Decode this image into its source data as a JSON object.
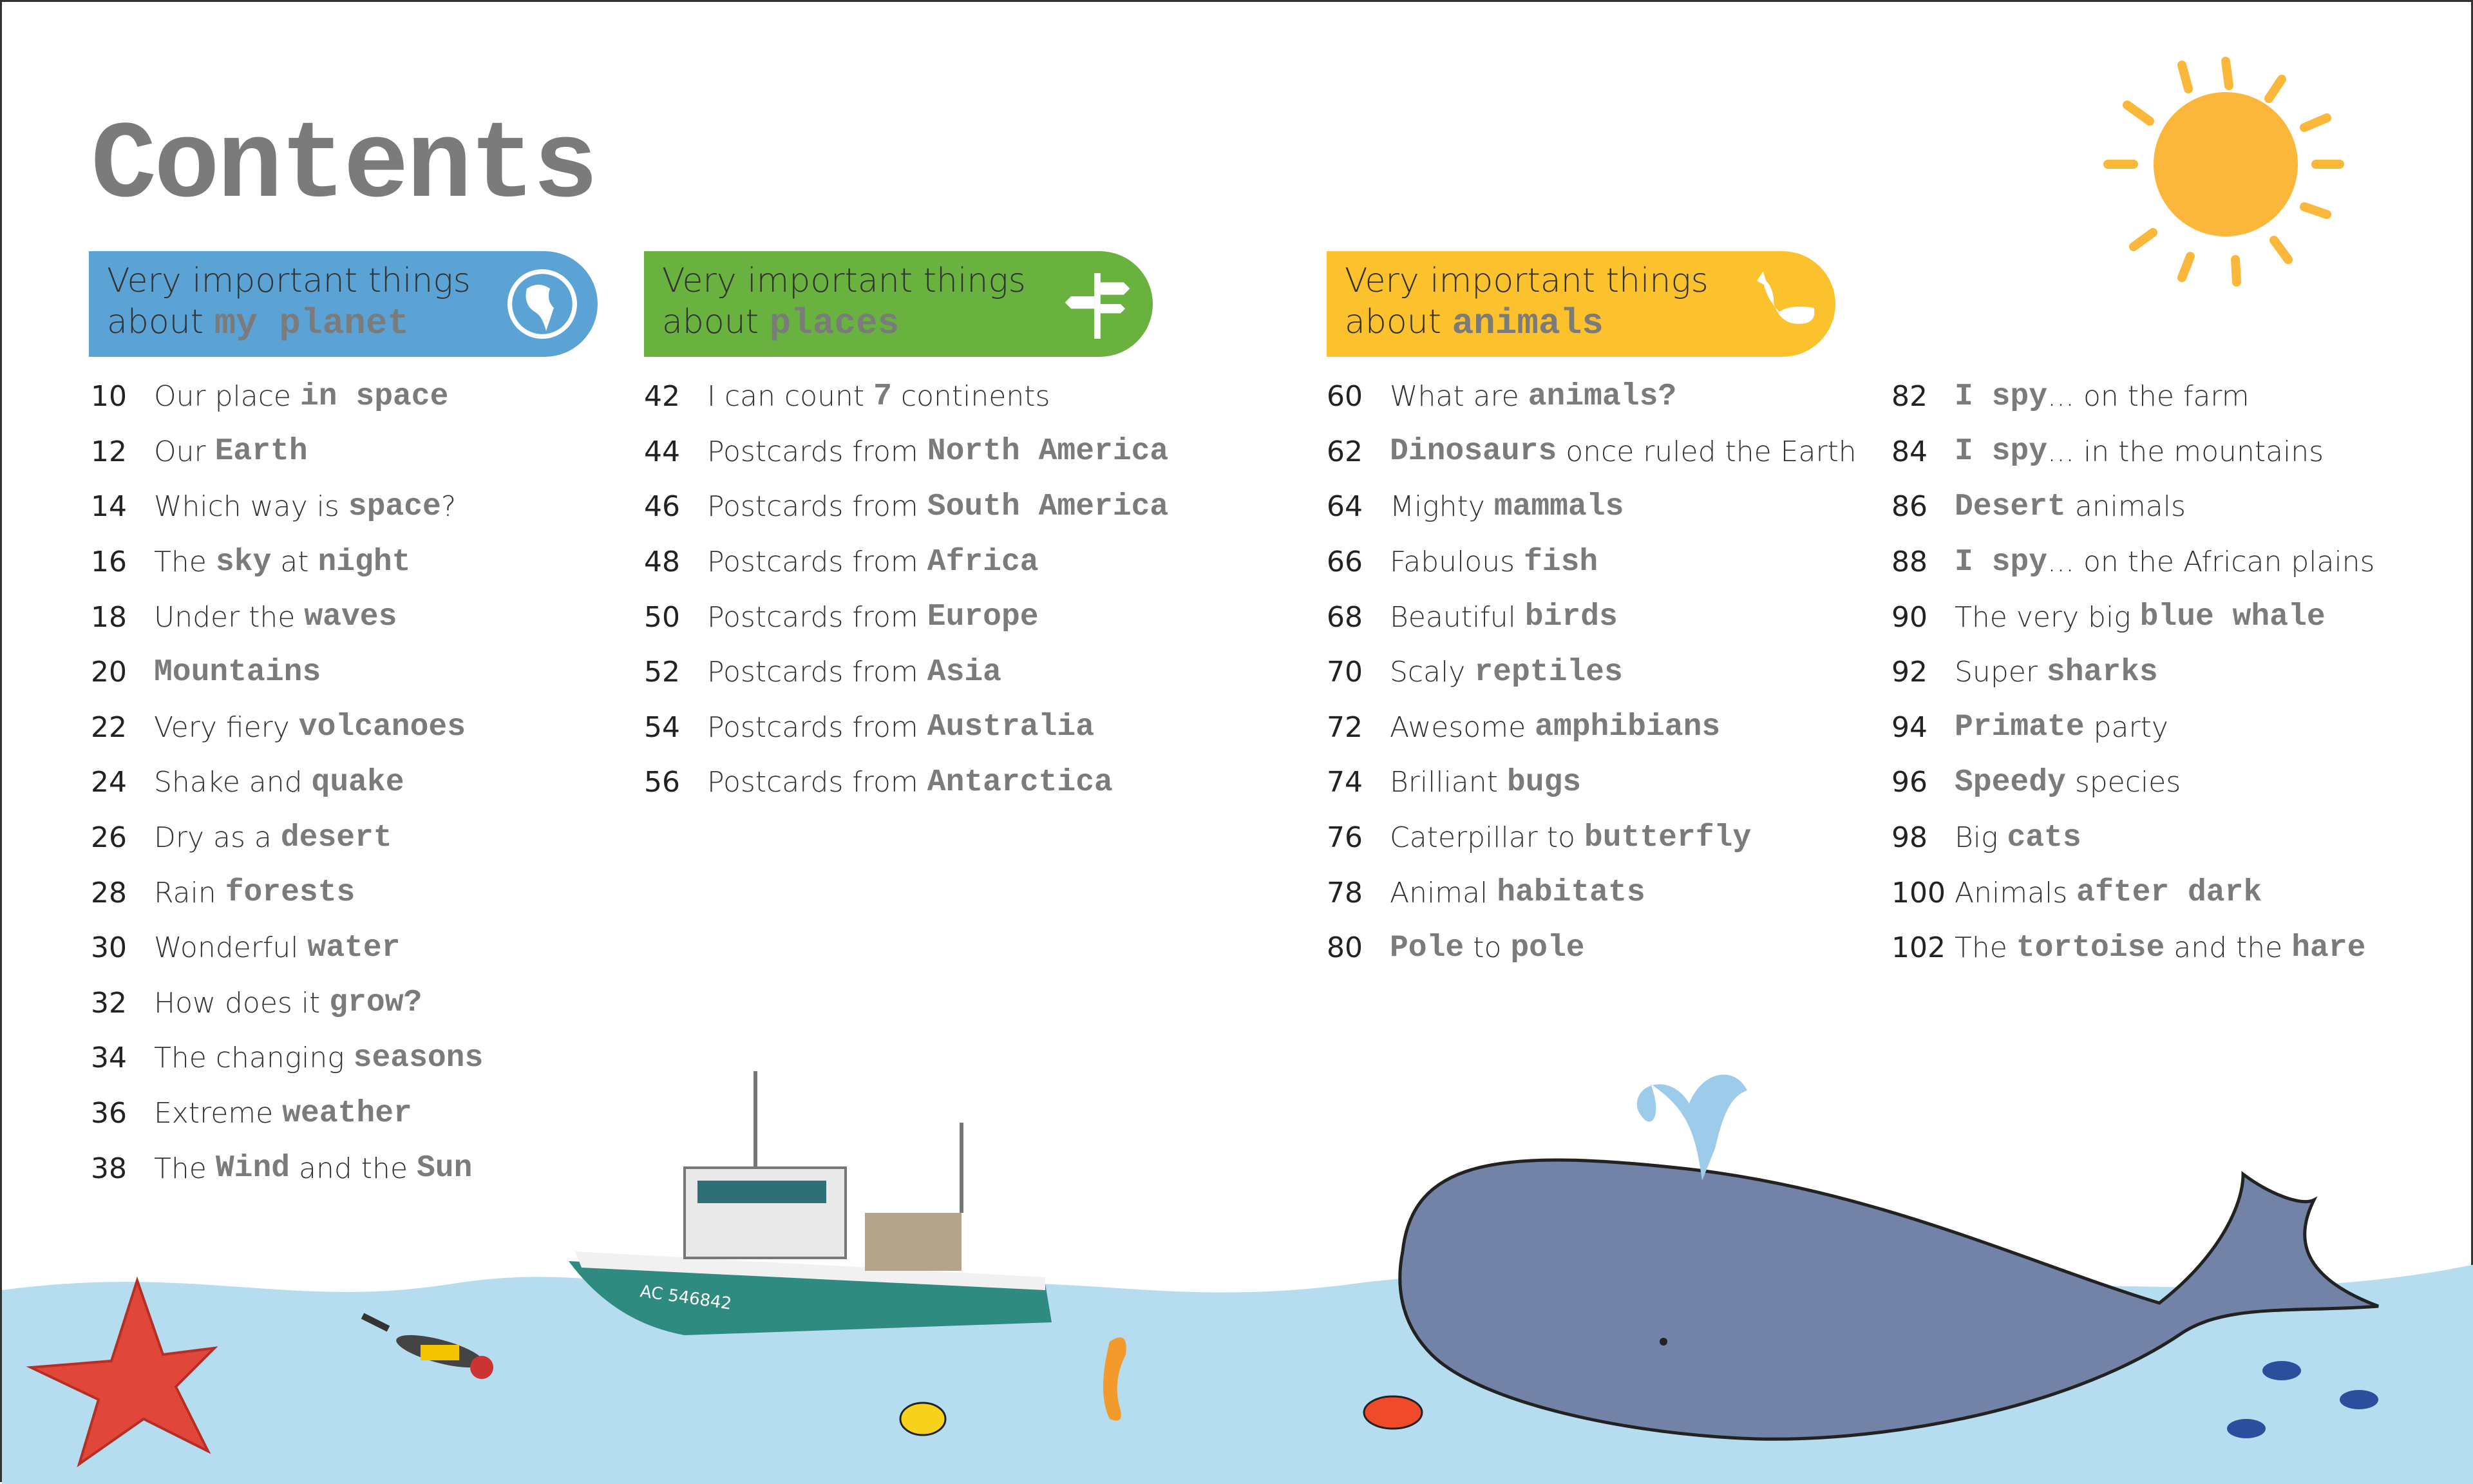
{
  "title": "Contents",
  "colors": {
    "planet": "#5ba3d4",
    "places": "#6ab23f",
    "animals": "#fcc22d",
    "highlight": "#7b7b7b",
    "water": "#b5ddef",
    "sun": "#fbb73a"
  },
  "sections": [
    {
      "line1": "Very important things",
      "about": "about",
      "highlight": "my planet",
      "icon": "globe-icon",
      "items": [
        {
          "num": "10",
          "parts": [
            {
              "t": "Our place ",
              "b": false
            },
            {
              "t": "in space",
              "b": true
            }
          ]
        },
        {
          "num": "12",
          "parts": [
            {
              "t": "Our ",
              "b": false
            },
            {
              "t": "Earth",
              "b": true
            }
          ]
        },
        {
          "num": "14",
          "parts": [
            {
              "t": "Which way is ",
              "b": false
            },
            {
              "t": "space",
              "b": true
            },
            {
              "t": "?",
              "b": false
            }
          ]
        },
        {
          "num": "16",
          "parts": [
            {
              "t": "The ",
              "b": false
            },
            {
              "t": "sky",
              "b": true
            },
            {
              "t": " at ",
              "b": false
            },
            {
              "t": "night",
              "b": true
            }
          ]
        },
        {
          "num": "18",
          "parts": [
            {
              "t": "Under the ",
              "b": false
            },
            {
              "t": "waves",
              "b": true
            }
          ]
        },
        {
          "num": "20",
          "parts": [
            {
              "t": "Mountains",
              "b": true
            }
          ]
        },
        {
          "num": "22",
          "parts": [
            {
              "t": "Very fiery ",
              "b": false
            },
            {
              "t": "volcanoes",
              "b": true
            }
          ]
        },
        {
          "num": "24",
          "parts": [
            {
              "t": "Shake and ",
              "b": false
            },
            {
              "t": "quake",
              "b": true
            }
          ]
        },
        {
          "num": "26",
          "parts": [
            {
              "t": "Dry as a ",
              "b": false
            },
            {
              "t": "desert",
              "b": true
            }
          ]
        },
        {
          "num": "28",
          "parts": [
            {
              "t": "Rain ",
              "b": false
            },
            {
              "t": "forests",
              "b": true
            }
          ]
        },
        {
          "num": "30",
          "parts": [
            {
              "t": "Wonderful ",
              "b": false
            },
            {
              "t": "water",
              "b": true
            }
          ]
        },
        {
          "num": "32",
          "parts": [
            {
              "t": "How does it ",
              "b": false
            },
            {
              "t": "grow?",
              "b": true
            }
          ]
        },
        {
          "num": "34",
          "parts": [
            {
              "t": "The changing ",
              "b": false
            },
            {
              "t": "seasons",
              "b": true
            }
          ]
        },
        {
          "num": "36",
          "parts": [
            {
              "t": "Extreme ",
              "b": false
            },
            {
              "t": "weather",
              "b": true
            }
          ]
        },
        {
          "num": "38",
          "parts": [
            {
              "t": "The ",
              "b": false
            },
            {
              "t": "Wind",
              "b": true
            },
            {
              "t": " and the ",
              "b": false
            },
            {
              "t": "Sun",
              "b": true
            }
          ]
        }
      ]
    },
    {
      "line1": "Very important things",
      "about": "about",
      "highlight": "places",
      "icon": "signpost-icon",
      "items": [
        {
          "num": "42",
          "parts": [
            {
              "t": "I can count ",
              "b": false
            },
            {
              "t": "7",
              "b": true
            },
            {
              "t": " continents",
              "b": false
            }
          ]
        },
        {
          "num": "44",
          "parts": [
            {
              "t": "Postcards from ",
              "b": false
            },
            {
              "t": "North America",
              "b": true
            }
          ]
        },
        {
          "num": "46",
          "parts": [
            {
              "t": "Postcards from ",
              "b": false
            },
            {
              "t": "South America",
              "b": true
            }
          ]
        },
        {
          "num": "48",
          "parts": [
            {
              "t": "Postcards from ",
              "b": false
            },
            {
              "t": "Africa",
              "b": true
            }
          ]
        },
        {
          "num": "50",
          "parts": [
            {
              "t": "Postcards from ",
              "b": false
            },
            {
              "t": "Europe",
              "b": true
            }
          ]
        },
        {
          "num": "52",
          "parts": [
            {
              "t": "Postcards from ",
              "b": false
            },
            {
              "t": "Asia",
              "b": true
            }
          ]
        },
        {
          "num": "54",
          "parts": [
            {
              "t": "Postcards from ",
              "b": false
            },
            {
              "t": "Australia",
              "b": true
            }
          ]
        },
        {
          "num": "56",
          "parts": [
            {
              "t": "Postcards from ",
              "b": false
            },
            {
              "t": "Antarctica",
              "b": true
            }
          ]
        }
      ]
    },
    {
      "line1": "Very important things",
      "about": "about",
      "highlight": "animals",
      "icon": "whale-icon",
      "items": [
        {
          "num": "60",
          "parts": [
            {
              "t": "What are ",
              "b": false
            },
            {
              "t": "animals?",
              "b": true
            }
          ]
        },
        {
          "num": "62",
          "parts": [
            {
              "t": "Dinosaurs",
              "b": true
            },
            {
              "t": " once ruled the Earth",
              "b": false
            }
          ]
        },
        {
          "num": "64",
          "parts": [
            {
              "t": "Mighty ",
              "b": false
            },
            {
              "t": "mammals",
              "b": true
            }
          ]
        },
        {
          "num": "66",
          "parts": [
            {
              "t": "Fabulous ",
              "b": false
            },
            {
              "t": "fish",
              "b": true
            }
          ]
        },
        {
          "num": "68",
          "parts": [
            {
              "t": "Beautiful ",
              "b": false
            },
            {
              "t": "birds",
              "b": true
            }
          ]
        },
        {
          "num": "70",
          "parts": [
            {
              "t": "Scaly ",
              "b": false
            },
            {
              "t": "reptiles",
              "b": true
            }
          ]
        },
        {
          "num": "72",
          "parts": [
            {
              "t": "Awesome ",
              "b": false
            },
            {
              "t": "amphibians",
              "b": true
            }
          ]
        },
        {
          "num": "74",
          "parts": [
            {
              "t": "Brilliant ",
              "b": false
            },
            {
              "t": "bugs",
              "b": true
            }
          ]
        },
        {
          "num": "76",
          "parts": [
            {
              "t": "Caterpillar to ",
              "b": false
            },
            {
              "t": "butterfly",
              "b": true
            }
          ]
        },
        {
          "num": "78",
          "parts": [
            {
              "t": "Animal ",
              "b": false
            },
            {
              "t": "habitats",
              "b": true
            }
          ]
        },
        {
          "num": "80",
          "parts": [
            {
              "t": "Pole",
              "b": true
            },
            {
              "t": " to ",
              "b": false
            },
            {
              "t": "pole",
              "b": true
            }
          ]
        }
      ],
      "items2": [
        {
          "num": "82",
          "parts": [
            {
              "t": "I spy",
              "b": true
            },
            {
              "t": "... on the farm",
              "b": false
            }
          ]
        },
        {
          "num": "84",
          "parts": [
            {
              "t": "I spy",
              "b": true
            },
            {
              "t": "... in the mountains",
              "b": false
            }
          ]
        },
        {
          "num": "86",
          "parts": [
            {
              "t": "Desert",
              "b": true
            },
            {
              "t": " animals",
              "b": false
            }
          ]
        },
        {
          "num": "88",
          "parts": [
            {
              "t": "I spy",
              "b": true
            },
            {
              "t": "... on the African plains",
              "b": false
            }
          ]
        },
        {
          "num": "90",
          "parts": [
            {
              "t": "The very big ",
              "b": false
            },
            {
              "t": "blue whale",
              "b": true
            }
          ]
        },
        {
          "num": "92",
          "parts": [
            {
              "t": "Super ",
              "b": false
            },
            {
              "t": "sharks",
              "b": true
            }
          ]
        },
        {
          "num": "94",
          "parts": [
            {
              "t": "Primate",
              "b": true
            },
            {
              "t": " party",
              "b": false
            }
          ]
        },
        {
          "num": "96",
          "parts": [
            {
              "t": "Speedy",
              "b": true
            },
            {
              "t": " species",
              "b": false
            }
          ]
        },
        {
          "num": "98",
          "parts": [
            {
              "t": "Big ",
              "b": false
            },
            {
              "t": "cats",
              "b": true
            }
          ]
        },
        {
          "num": "100",
          "parts": [
            {
              "t": "Animals ",
              "b": false
            },
            {
              "t": "after dark",
              "b": true
            }
          ]
        },
        {
          "num": "102",
          "parts": [
            {
              "t": "The ",
              "b": false
            },
            {
              "t": "tortoise",
              "b": true
            },
            {
              "t": " and the ",
              "b": false
            },
            {
              "t": "hare",
              "b": true
            }
          ]
        }
      ]
    }
  ],
  "boat_registration": "AC 546842"
}
